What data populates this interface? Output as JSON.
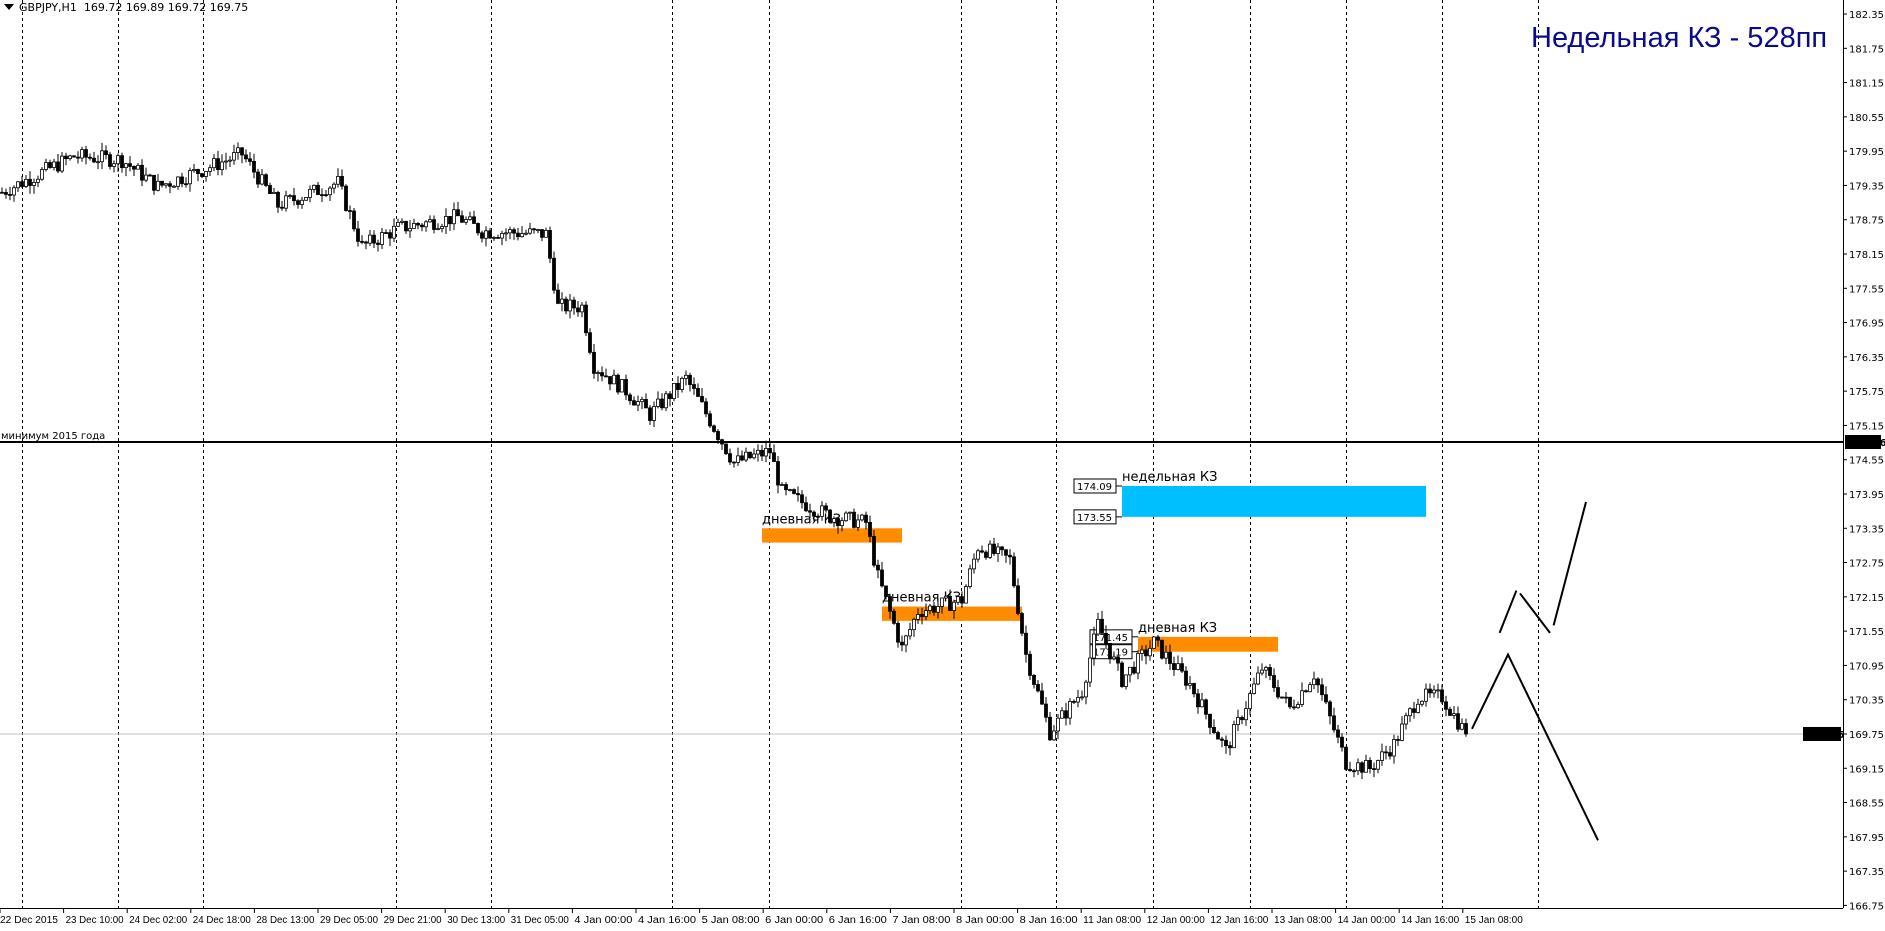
{
  "header": {
    "symbol": "GBPJPY,H1",
    "ohlc": "169.72 169.89 169.72 169.75"
  },
  "title_annotation": "Недельная КЗ - 528пп",
  "chart_data": {
    "type": "candlestick",
    "symbol": "GBPJPY",
    "timeframe": "H1",
    "ylim": [
      166.75,
      182.35
    ],
    "y_ticks": [
      "182.35",
      "181.75",
      "181.15",
      "180.55",
      "179.95",
      "179.35",
      "178.75",
      "178.15",
      "177.55",
      "176.95",
      "176.35",
      "175.75",
      "175.15",
      "174.55",
      "173.95",
      "173.35",
      "172.75",
      "172.15",
      "171.55",
      "170.95",
      "170.35",
      "169.75",
      "169.15",
      "168.55",
      "167.95",
      "167.35",
      "166.75"
    ],
    "x_ticks": [
      "22 Dec 2015",
      "23 Dec 10:00",
      "24 Dec 02:00",
      "24 Dec 18:00",
      "28 Dec 13:00",
      "29 Dec 05:00",
      "29 Dec 21:00",
      "30 Dec 13:00",
      "31 Dec 05:00",
      "4 Jan 00:00",
      "4 Jan 16:00",
      "5 Jan 08:00",
      "6 Jan 00:00",
      "6 Jan 16:00",
      "7 Jan 08:00",
      "8 Jan 00:00",
      "8 Jan 16:00",
      "11 Jan 08:00",
      "12 Jan 00:00",
      "12 Jan 16:00",
      "13 Jan 08:00",
      "14 Jan 00:00",
      "14 Jan 16:00",
      "15 Jan 08:00"
    ],
    "x_unit": "H1 bar index",
    "approx_close_path": [
      [
        0,
        179.23
      ],
      [
        18,
        179.86
      ],
      [
        30,
        179.8
      ],
      [
        39,
        179.33
      ],
      [
        51,
        179.65
      ],
      [
        60,
        179.9
      ],
      [
        69,
        179.0
      ],
      [
        84,
        179.4
      ],
      [
        90,
        178.28
      ],
      [
        99,
        178.6
      ],
      [
        114,
        178.8
      ],
      [
        120,
        178.55
      ],
      [
        136,
        178.5
      ],
      [
        139,
        177.23
      ],
      [
        145,
        177.23
      ],
      [
        148,
        176.2
      ],
      [
        156,
        175.76
      ],
      [
        162,
        175.34
      ],
      [
        171,
        175.97
      ],
      [
        177,
        175.24
      ],
      [
        183,
        174.5
      ],
      [
        192,
        174.7
      ],
      [
        195,
        173.98
      ],
      [
        207,
        173.56
      ],
      [
        216,
        173.45
      ],
      [
        219,
        172.5
      ],
      [
        225,
        171.25
      ],
      [
        229,
        171.9
      ],
      [
        240,
        172.1
      ],
      [
        244,
        173.03
      ],
      [
        252,
        172.8
      ],
      [
        256,
        171.14
      ],
      [
        262,
        169.78
      ],
      [
        270,
        170.5
      ],
      [
        274,
        171.67
      ],
      [
        280,
        170.7
      ],
      [
        288,
        171.35
      ],
      [
        297,
        170.62
      ],
      [
        306,
        169.46
      ],
      [
        315,
        170.9
      ],
      [
        322,
        170.2
      ],
      [
        328,
        170.8
      ],
      [
        336,
        169.25
      ],
      [
        342,
        169.15
      ],
      [
        348,
        169.57
      ],
      [
        354,
        170.4
      ],
      [
        360,
        170.4
      ],
      [
        366,
        169.75
      ]
    ],
    "current_price": "169.75",
    "current_price_value": 169.75,
    "horizontal_line": {
      "label": "минимум 2015 года",
      "price": "174.86",
      "value": 174.86
    },
    "zones": [
      {
        "label": "дневная КЗ",
        "top": 173.35,
        "bottom": 173.1,
        "from_bar": 190,
        "to_bar": 225,
        "color": "#ff8c00"
      },
      {
        "label": "дневная КЗ",
        "top": 171.98,
        "bottom": 171.73,
        "from_bar": 220,
        "to_bar": 255,
        "color": "#ff8c00"
      },
      {
        "label": "дневная КЗ",
        "top": 171.45,
        "bottom": 171.19,
        "top_tag": "171.45",
        "bottom_tag": "171.19",
        "from_bar": 284,
        "to_bar": 319,
        "color": "#ff8c00"
      },
      {
        "label": "недельная КЗ",
        "top": 174.09,
        "bottom": 173.55,
        "top_tag": "174.09",
        "bottom_tag": "173.55",
        "from_bar": 280,
        "to_bar": 356,
        "color": "#00bfff"
      }
    ],
    "forecast_lines": [
      [
        [
          367.5,
          169.84
        ],
        [
          376.5,
          171.14
        ],
        [
          399,
          167.89
        ]
      ],
      [
        [
          374.4,
          171.52
        ],
        [
          378.6,
          172.26
        ]
      ],
      [
        [
          379.5,
          172.21
        ],
        [
          387,
          171.52
        ]
      ],
      [
        [
          387.9,
          171.65
        ],
        [
          396,
          173.81
        ]
      ]
    ],
    "grid": "vertical dashed day separators",
    "colors": {
      "bull_body": "#ffffff",
      "bear_body": "#000000",
      "candle_outline": "#000000",
      "daily_zone": "#ff8c00",
      "weekly_zone": "#00bfff",
      "title_text": "#0a0a8c"
    }
  }
}
